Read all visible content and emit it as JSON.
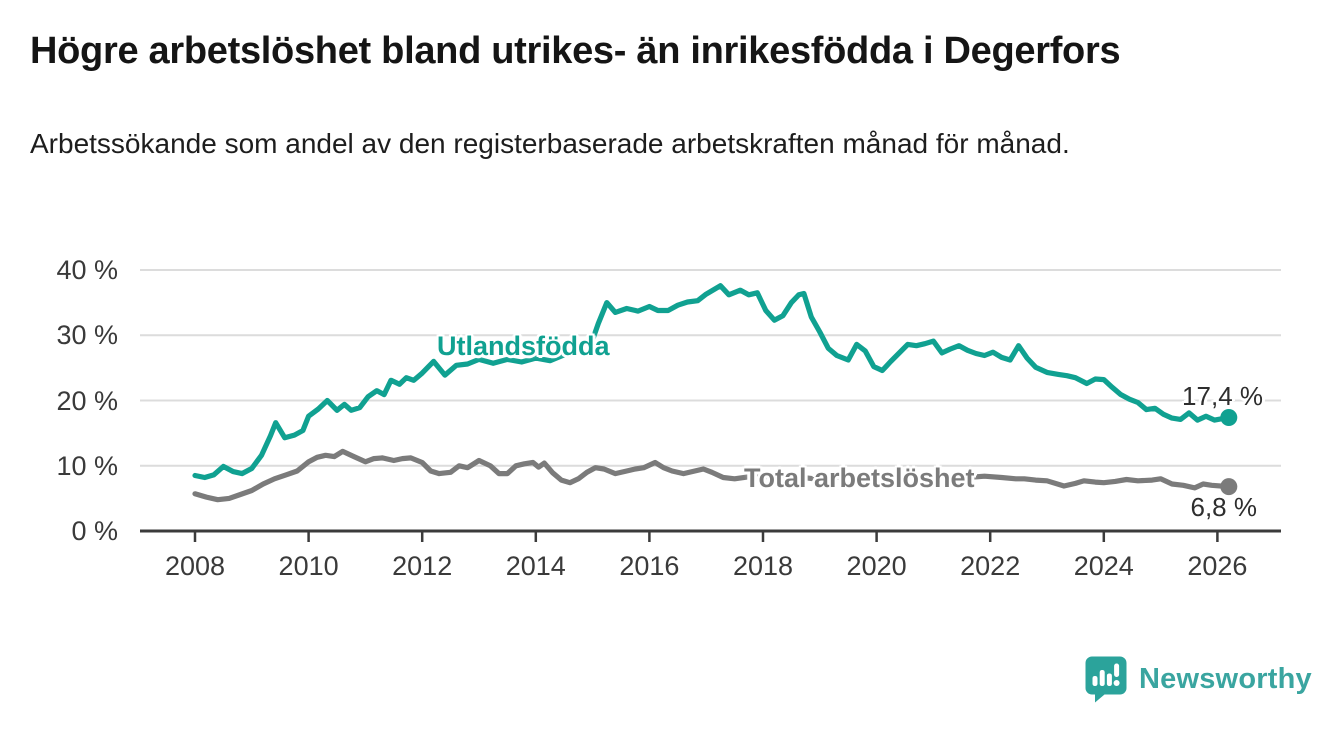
{
  "header": {
    "title": "Högre arbetslöshet bland utrikes- än inrikesfödda i Degerfors",
    "subtitle": "Arbetssökande som andel av den registerbaserade arbetskraften månad för månad."
  },
  "chart_data": {
    "type": "line",
    "unit": "%",
    "ylim": [
      0,
      40
    ],
    "xlim": [
      2007.5,
      2027.2
    ],
    "grid": true,
    "legend_position": "inline-labels",
    "y_ticks": [
      {
        "value": 0,
        "label": "0 %"
      },
      {
        "value": 10,
        "label": "10 %"
      },
      {
        "value": 20,
        "label": "20 %"
      },
      {
        "value": 30,
        "label": "30 %"
      },
      {
        "value": 40,
        "label": "40 %"
      }
    ],
    "x_ticks": [
      {
        "value": 2008,
        "label": "2008"
      },
      {
        "value": 2010,
        "label": "2010"
      },
      {
        "value": 2012,
        "label": "2012"
      },
      {
        "value": 2014,
        "label": "2014"
      },
      {
        "value": 2016,
        "label": "2016"
      },
      {
        "value": 2018,
        "label": "2018"
      },
      {
        "value": 2020,
        "label": "2020"
      },
      {
        "value": 2022,
        "label": "2022"
      },
      {
        "value": 2024,
        "label": "2024"
      },
      {
        "value": 2026,
        "label": "2026"
      }
    ],
    "series": [
      {
        "id": "utlandsfodda",
        "label": "Utlandsfödda",
        "color": "#10a191",
        "end_label": "17,4 %",
        "end_value": 17.4,
        "points": [
          [
            2008.0,
            8.5
          ],
          [
            2008.17,
            8.2
          ],
          [
            2008.33,
            8.6
          ],
          [
            2008.5,
            9.9
          ],
          [
            2008.67,
            9.1
          ],
          [
            2008.83,
            8.8
          ],
          [
            2009.0,
            9.6
          ],
          [
            2009.17,
            11.6
          ],
          [
            2009.33,
            14.6
          ],
          [
            2009.42,
            16.6
          ],
          [
            2009.58,
            14.3
          ],
          [
            2009.75,
            14.7
          ],
          [
            2009.9,
            15.4
          ],
          [
            2010.0,
            17.6
          ],
          [
            2010.17,
            18.7
          ],
          [
            2010.33,
            20.0
          ],
          [
            2010.5,
            18.5
          ],
          [
            2010.63,
            19.4
          ],
          [
            2010.75,
            18.5
          ],
          [
            2010.9,
            18.9
          ],
          [
            2011.05,
            20.6
          ],
          [
            2011.2,
            21.5
          ],
          [
            2011.33,
            20.9
          ],
          [
            2011.45,
            23.1
          ],
          [
            2011.6,
            22.5
          ],
          [
            2011.72,
            23.5
          ],
          [
            2011.85,
            23.1
          ],
          [
            2012.0,
            24.2
          ],
          [
            2012.2,
            26.0
          ],
          [
            2012.4,
            23.9
          ],
          [
            2012.6,
            25.4
          ],
          [
            2012.8,
            25.6
          ],
          [
            2013.0,
            26.3
          ],
          [
            2013.25,
            25.7
          ],
          [
            2013.5,
            26.3
          ],
          [
            2013.75,
            25.9
          ],
          [
            2014.0,
            26.5
          ],
          [
            2014.25,
            26.1
          ],
          [
            2014.5,
            27.0
          ],
          [
            2014.75,
            27.7
          ],
          [
            2015.0,
            29.3
          ],
          [
            2015.1,
            31.8
          ],
          [
            2015.25,
            35.0
          ],
          [
            2015.4,
            33.5
          ],
          [
            2015.6,
            34.1
          ],
          [
            2015.8,
            33.7
          ],
          [
            2016.0,
            34.4
          ],
          [
            2016.15,
            33.8
          ],
          [
            2016.33,
            33.8
          ],
          [
            2016.5,
            34.6
          ],
          [
            2016.67,
            35.1
          ],
          [
            2016.85,
            35.3
          ],
          [
            2017.0,
            36.3
          ],
          [
            2017.25,
            37.6
          ],
          [
            2017.4,
            36.2
          ],
          [
            2017.6,
            36.9
          ],
          [
            2017.75,
            36.2
          ],
          [
            2017.9,
            36.5
          ],
          [
            2018.05,
            33.8
          ],
          [
            2018.2,
            32.3
          ],
          [
            2018.35,
            33.0
          ],
          [
            2018.5,
            35.0
          ],
          [
            2018.63,
            36.2
          ],
          [
            2018.72,
            36.4
          ],
          [
            2018.85,
            32.8
          ],
          [
            2019.0,
            30.5
          ],
          [
            2019.15,
            28.0
          ],
          [
            2019.3,
            26.9
          ],
          [
            2019.5,
            26.2
          ],
          [
            2019.65,
            28.6
          ],
          [
            2019.8,
            27.6
          ],
          [
            2019.95,
            25.2
          ],
          [
            2020.1,
            24.6
          ],
          [
            2020.25,
            26.0
          ],
          [
            2020.4,
            27.3
          ],
          [
            2020.55,
            28.6
          ],
          [
            2020.7,
            28.4
          ],
          [
            2020.85,
            28.7
          ],
          [
            2021.0,
            29.1
          ],
          [
            2021.15,
            27.3
          ],
          [
            2021.3,
            27.9
          ],
          [
            2021.45,
            28.4
          ],
          [
            2021.6,
            27.7
          ],
          [
            2021.75,
            27.2
          ],
          [
            2021.9,
            26.9
          ],
          [
            2022.05,
            27.4
          ],
          [
            2022.2,
            26.6
          ],
          [
            2022.35,
            26.2
          ],
          [
            2022.5,
            28.4
          ],
          [
            2022.65,
            26.5
          ],
          [
            2022.8,
            25.1
          ],
          [
            2023.0,
            24.3
          ],
          [
            2023.2,
            24.0
          ],
          [
            2023.35,
            23.8
          ],
          [
            2023.5,
            23.5
          ],
          [
            2023.7,
            22.6
          ],
          [
            2023.85,
            23.3
          ],
          [
            2024.0,
            23.2
          ],
          [
            2024.15,
            22.0
          ],
          [
            2024.3,
            20.9
          ],
          [
            2024.45,
            20.2
          ],
          [
            2024.6,
            19.7
          ],
          [
            2024.75,
            18.6
          ],
          [
            2024.9,
            18.8
          ],
          [
            2025.05,
            17.9
          ],
          [
            2025.2,
            17.3
          ],
          [
            2025.35,
            17.1
          ],
          [
            2025.5,
            18.1
          ],
          [
            2025.65,
            17.0
          ],
          [
            2025.8,
            17.6
          ],
          [
            2025.95,
            17.0
          ],
          [
            2026.2,
            17.4
          ]
        ]
      },
      {
        "id": "total-arbetsloshet",
        "label": "Total arbetslöshet",
        "color": "#7b7b7b",
        "end_label": "6,8 %",
        "end_value": 6.8,
        "points": [
          [
            2008.0,
            5.7
          ],
          [
            2008.2,
            5.2
          ],
          [
            2008.4,
            4.8
          ],
          [
            2008.6,
            5.0
          ],
          [
            2008.8,
            5.6
          ],
          [
            2009.0,
            6.2
          ],
          [
            2009.2,
            7.2
          ],
          [
            2009.4,
            8.0
          ],
          [
            2009.6,
            8.6
          ],
          [
            2009.8,
            9.2
          ],
          [
            2010.0,
            10.6
          ],
          [
            2010.15,
            11.3
          ],
          [
            2010.3,
            11.6
          ],
          [
            2010.45,
            11.4
          ],
          [
            2010.6,
            12.2
          ],
          [
            2010.8,
            11.4
          ],
          [
            2011.0,
            10.6
          ],
          [
            2011.15,
            11.1
          ],
          [
            2011.3,
            11.2
          ],
          [
            2011.5,
            10.8
          ],
          [
            2011.65,
            11.1
          ],
          [
            2011.8,
            11.2
          ],
          [
            2012.0,
            10.5
          ],
          [
            2012.15,
            9.2
          ],
          [
            2012.3,
            8.8
          ],
          [
            2012.5,
            9.0
          ],
          [
            2012.65,
            10.0
          ],
          [
            2012.8,
            9.7
          ],
          [
            2013.0,
            10.8
          ],
          [
            2013.2,
            10.0
          ],
          [
            2013.35,
            8.8
          ],
          [
            2013.5,
            8.8
          ],
          [
            2013.65,
            10.0
          ],
          [
            2013.8,
            10.3
          ],
          [
            2013.95,
            10.5
          ],
          [
            2014.05,
            9.8
          ],
          [
            2014.15,
            10.4
          ],
          [
            2014.3,
            8.9
          ],
          [
            2014.45,
            7.8
          ],
          [
            2014.6,
            7.4
          ],
          [
            2014.75,
            8.0
          ],
          [
            2014.9,
            9.0
          ],
          [
            2015.05,
            9.7
          ],
          [
            2015.2,
            9.5
          ],
          [
            2015.4,
            8.8
          ],
          [
            2015.6,
            9.2
          ],
          [
            2015.75,
            9.5
          ],
          [
            2015.9,
            9.7
          ],
          [
            2016.1,
            10.5
          ],
          [
            2016.25,
            9.7
          ],
          [
            2016.4,
            9.2
          ],
          [
            2016.6,
            8.8
          ],
          [
            2016.8,
            9.2
          ],
          [
            2016.95,
            9.5
          ],
          [
            2017.1,
            9.0
          ],
          [
            2017.3,
            8.2
          ],
          [
            2017.5,
            8.0
          ],
          [
            2017.75,
            8.3
          ],
          [
            2018.0,
            8.4
          ],
          [
            2018.3,
            8.1
          ],
          [
            2018.6,
            8.3
          ],
          [
            2018.9,
            8.0
          ],
          [
            2019.2,
            8.2
          ],
          [
            2019.5,
            8.4
          ],
          [
            2019.8,
            8.2
          ],
          [
            2020.1,
            8.5
          ],
          [
            2020.4,
            8.6
          ],
          [
            2020.7,
            8.4
          ],
          [
            2021.0,
            8.5
          ],
          [
            2021.3,
            8.3
          ],
          [
            2021.6,
            8.2
          ],
          [
            2021.9,
            8.4
          ],
          [
            2022.2,
            8.2
          ],
          [
            2022.45,
            8.0
          ],
          [
            2022.6,
            8.0
          ],
          [
            2022.8,
            7.8
          ],
          [
            2023.0,
            7.7
          ],
          [
            2023.3,
            6.9
          ],
          [
            2023.5,
            7.3
          ],
          [
            2023.65,
            7.7
          ],
          [
            2023.85,
            7.5
          ],
          [
            2024.0,
            7.4
          ],
          [
            2024.2,
            7.6
          ],
          [
            2024.4,
            7.9
          ],
          [
            2024.6,
            7.7
          ],
          [
            2024.85,
            7.8
          ],
          [
            2025.0,
            8.0
          ],
          [
            2025.2,
            7.2
          ],
          [
            2025.4,
            7.0
          ],
          [
            2025.6,
            6.6
          ],
          [
            2025.75,
            7.2
          ],
          [
            2025.9,
            7.0
          ],
          [
            2026.2,
            6.8
          ]
        ]
      }
    ]
  },
  "branding": {
    "name": "Newsworthy",
    "color": "#3aa5a0",
    "logo_icon": "newsworthy-speech-bubble-bar-chart-icon"
  },
  "colors": {
    "accent_teal": "#10a191",
    "series_gray": "#7b7b7b",
    "gridline": "#dcdcdc",
    "axis": "#3b3b3b",
    "text_dark": "#151515"
  }
}
